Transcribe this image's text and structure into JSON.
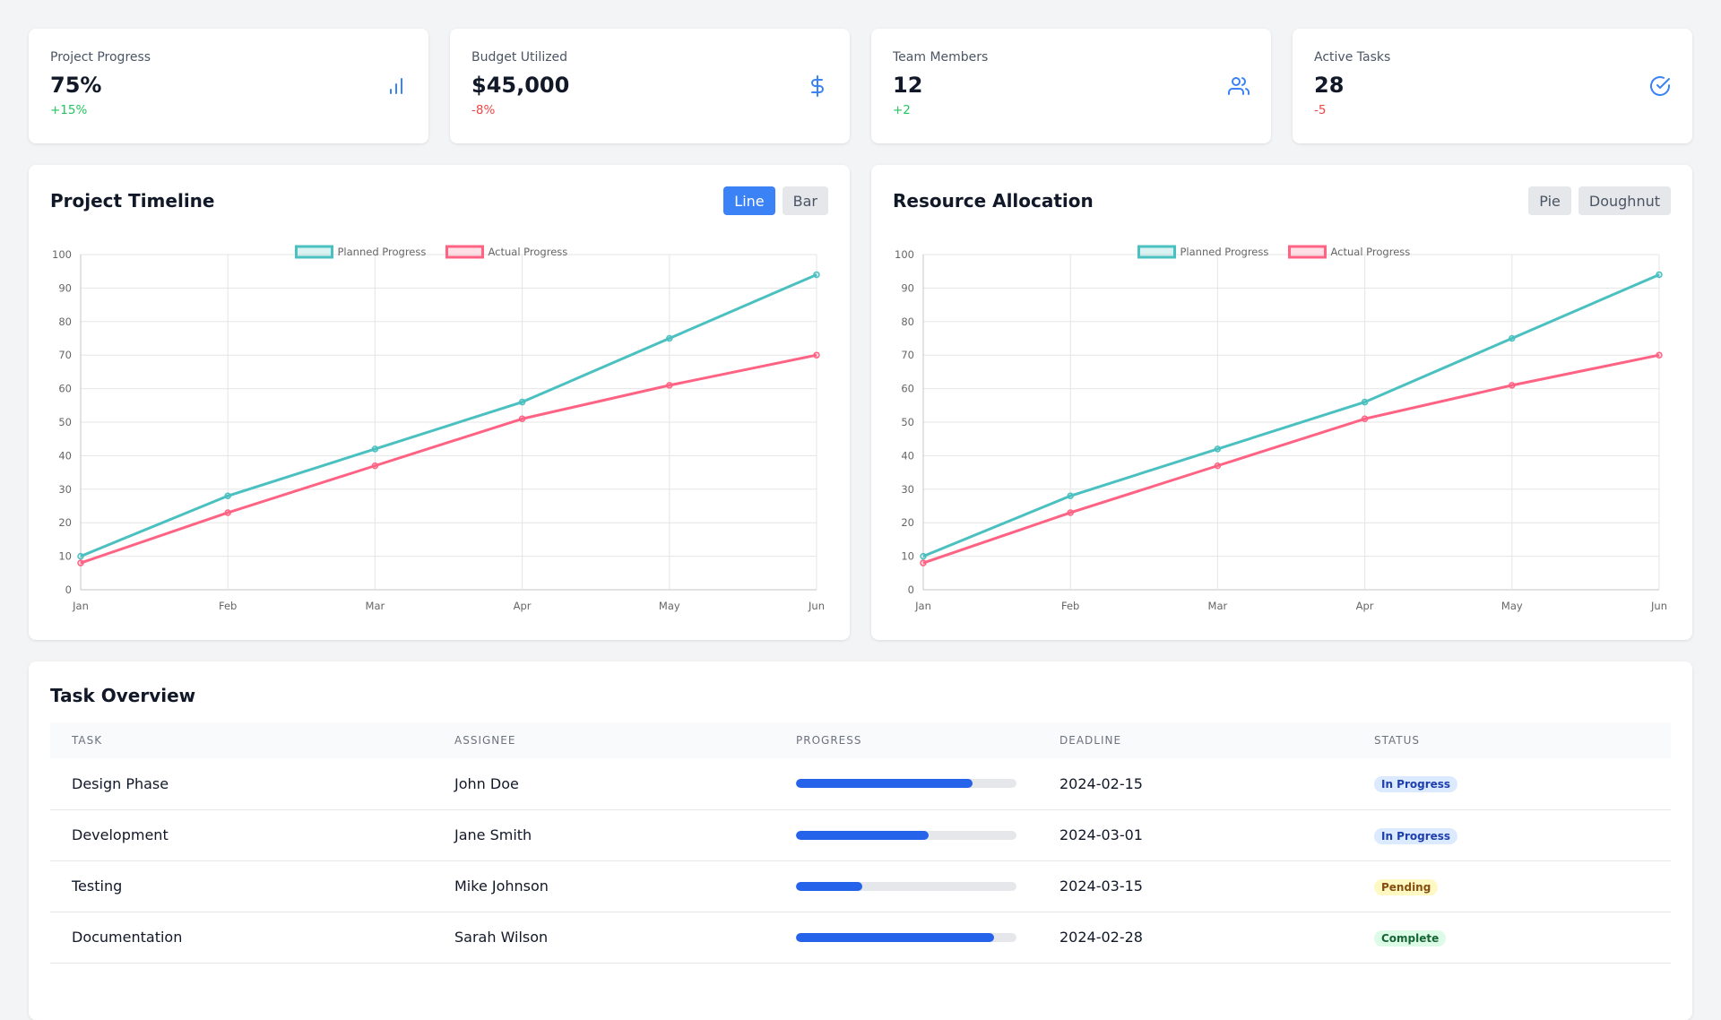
{
  "stats": [
    {
      "label": "Project Progress",
      "value": "75%",
      "change": "+15%",
      "trend": "up",
      "icon": "bar-chart-icon"
    },
    {
      "label": "Budget Utilized",
      "value": "$45,000",
      "change": "-8%",
      "trend": "down",
      "icon": "dollar-icon"
    },
    {
      "label": "Team Members",
      "value": "12",
      "change": "+2",
      "trend": "up",
      "icon": "users-icon"
    },
    {
      "label": "Active Tasks",
      "value": "28",
      "change": "-5",
      "trend": "down",
      "icon": "check-circle-icon"
    }
  ],
  "colors": {
    "accent": "#3b82f6",
    "planned": "#4bc0c0",
    "actual": "#ff6384",
    "up": "#22c55e",
    "down": "#ef4444"
  },
  "timeline": {
    "title": "Project Timeline",
    "buttons": [
      {
        "label": "Line",
        "active": true
      },
      {
        "label": "Bar",
        "active": false
      }
    ]
  },
  "resources": {
    "title": "Resource Allocation",
    "buttons": [
      {
        "label": "Pie",
        "active": false
      },
      {
        "label": "Doughnut",
        "active": false
      }
    ]
  },
  "chart_data": [
    {
      "type": "line",
      "categories": [
        "Jan",
        "Feb",
        "Mar",
        "Apr",
        "May",
        "Jun"
      ],
      "series": [
        {
          "name": "Planned Progress",
          "values": [
            10,
            28,
            42,
            56,
            75,
            94
          ]
        },
        {
          "name": "Actual Progress",
          "values": [
            8,
            23,
            37,
            51,
            61,
            70
          ]
        }
      ],
      "ylim": [
        0,
        100
      ],
      "yticks": [
        0,
        10,
        20,
        30,
        40,
        50,
        60,
        70,
        80,
        90,
        100
      ],
      "legend": "top-center",
      "grid": true
    },
    {
      "type": "line",
      "categories": [
        "Jan",
        "Feb",
        "Mar",
        "Apr",
        "May",
        "Jun"
      ],
      "series": [
        {
          "name": "Planned Progress",
          "values": [
            10,
            28,
            42,
            56,
            75,
            94
          ]
        },
        {
          "name": "Actual Progress",
          "values": [
            8,
            23,
            37,
            51,
            61,
            70
          ]
        }
      ],
      "ylim": [
        0,
        100
      ],
      "yticks": [
        0,
        10,
        20,
        30,
        40,
        50,
        60,
        70,
        80,
        90,
        100
      ],
      "legend": "top-center",
      "grid": true
    }
  ],
  "tasks": {
    "title": "Task Overview",
    "headers": [
      "TASK",
      "ASSIGNEE",
      "PROGRESS",
      "DEADLINE",
      "STATUS"
    ],
    "rows": [
      {
        "task": "Design Phase",
        "assignee": "John Doe",
        "progress": 80,
        "deadline": "2024-02-15",
        "status": "In Progress",
        "kind": "prog"
      },
      {
        "task": "Development",
        "assignee": "Jane Smith",
        "progress": 60,
        "deadline": "2024-03-01",
        "status": "In Progress",
        "kind": "prog"
      },
      {
        "task": "Testing",
        "assignee": "Mike Johnson",
        "progress": 30,
        "deadline": "2024-03-15",
        "status": "Pending",
        "kind": "pend"
      },
      {
        "task": "Documentation",
        "assignee": "Sarah Wilson",
        "progress": 90,
        "deadline": "2024-02-28",
        "status": "Complete",
        "kind": "comp"
      }
    ]
  }
}
